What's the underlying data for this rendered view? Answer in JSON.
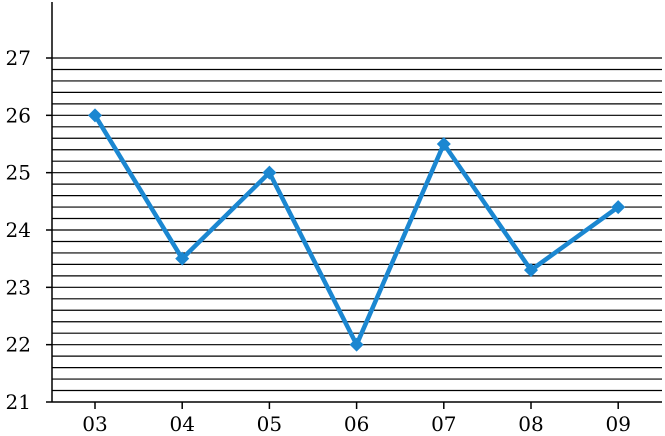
{
  "chart_data": {
    "type": "line",
    "title": "",
    "xlabel": "",
    "ylabel": "",
    "categories": [
      "03",
      "04",
      "05",
      "06",
      "07",
      "08",
      "09"
    ],
    "series": [
      {
        "values": [
          26.0,
          23.5,
          25.0,
          22.0,
          25.5,
          23.3,
          24.4
        ],
        "color": "#1b87d1",
        "marker": "diamond"
      }
    ],
    "ylim": [
      21,
      27
    ],
    "yticks": [
      21,
      22,
      23,
      24,
      25,
      26,
      27
    ],
    "ytick_labels": [
      "21",
      "22",
      "23",
      "24",
      "25",
      "26",
      "27"
    ],
    "grid": {
      "horizontal": true,
      "vertical": false,
      "minor_per_major": 5
    },
    "legend": "none"
  }
}
